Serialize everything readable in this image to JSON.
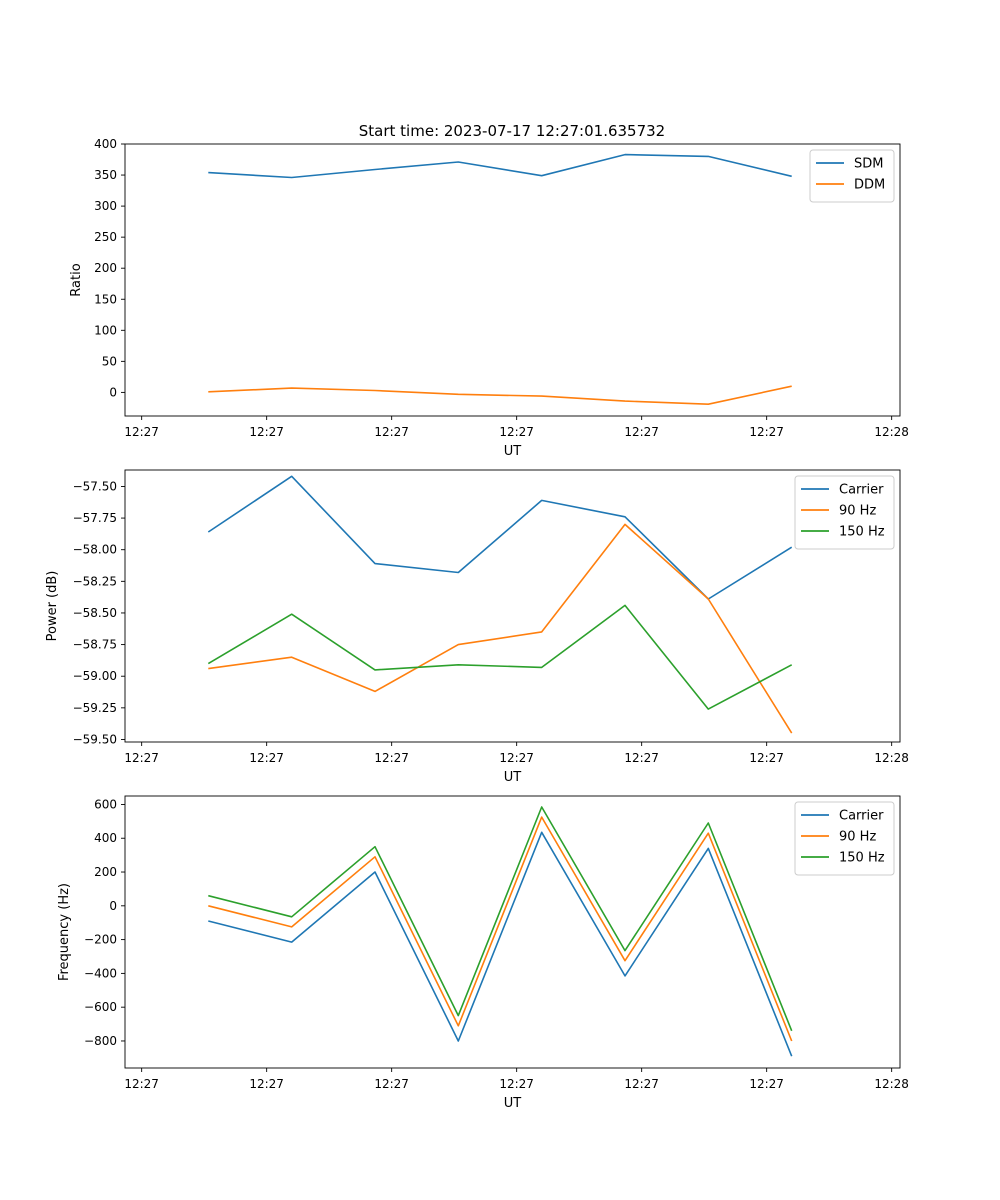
{
  "figure_title": "Start time: 2023-07-17 12:27:01.635732",
  "chart_data": [
    {
      "type": "line",
      "title": "Start time: 2023-07-17 12:27:01.635732",
      "xlabel": "UT",
      "ylabel": "Ratio",
      "x": [
        1,
        2,
        3,
        4,
        5,
        6,
        7,
        8
      ],
      "xlim": [
        0,
        9.3
      ],
      "x_ticks": [
        0.2,
        1.7,
        3.2,
        4.7,
        6.2,
        7.7,
        9.2
      ],
      "x_tick_labels": [
        "12:27",
        "12:27",
        "12:27",
        "12:27",
        "12:27",
        "12:27",
        "12:28"
      ],
      "ylim": [
        -38,
        400
      ],
      "y_ticks": [
        0,
        50,
        100,
        150,
        200,
        250,
        300,
        350,
        400
      ],
      "y_tick_labels": [
        "0",
        "50",
        "100",
        "150",
        "200",
        "250",
        "300",
        "350",
        "400"
      ],
      "legend_position": "top-right",
      "series": [
        {
          "name": "SDM",
          "color": "#1f77b4",
          "values": [
            354,
            346,
            359,
            371,
            349,
            383,
            380,
            348
          ]
        },
        {
          "name": "DDM",
          "color": "#ff7f0e",
          "values": [
            1,
            7,
            3,
            -3,
            -6,
            -14,
            -19,
            10
          ]
        }
      ]
    },
    {
      "type": "line",
      "title": "",
      "xlabel": "UT",
      "ylabel": "Power (dB)",
      "x": [
        1,
        2,
        3,
        4,
        5,
        6,
        7,
        8
      ],
      "xlim": [
        0,
        9.3
      ],
      "x_ticks": [
        0.2,
        1.7,
        3.2,
        4.7,
        6.2,
        7.7,
        9.2
      ],
      "x_tick_labels": [
        "12:27",
        "12:27",
        "12:27",
        "12:27",
        "12:27",
        "12:27",
        "12:28"
      ],
      "ylim": [
        -59.52,
        -57.37
      ],
      "y_ticks": [
        -57.5,
        -57.75,
        -58.0,
        -58.25,
        -58.5,
        -58.75,
        -59.0,
        -59.25,
        -59.5
      ],
      "y_tick_labels": [
        "−57.50",
        "−57.75",
        "−58.00",
        "−58.25",
        "−58.50",
        "−58.75",
        "−59.00",
        "−59.25",
        "−59.50"
      ],
      "legend_position": "top-right",
      "series": [
        {
          "name": "Carrier",
          "color": "#1f77b4",
          "values": [
            -57.86,
            -57.42,
            -58.11,
            -58.18,
            -57.61,
            -57.74,
            -58.39,
            -57.98
          ]
        },
        {
          "name": "90 Hz",
          "color": "#ff7f0e",
          "values": [
            -58.94,
            -58.85,
            -59.12,
            -58.75,
            -58.65,
            -57.8,
            -58.39,
            -59.45
          ]
        },
        {
          "name": "150 Hz",
          "color": "#2ca02c",
          "values": [
            -58.9,
            -58.51,
            -58.95,
            -58.91,
            -58.93,
            -58.44,
            -59.26,
            -58.91
          ]
        }
      ]
    },
    {
      "type": "line",
      "title": "",
      "xlabel": "UT",
      "ylabel": "Frequency (Hz)",
      "x": [
        1,
        2,
        3,
        4,
        5,
        6,
        7,
        8
      ],
      "xlim": [
        0,
        9.3
      ],
      "x_ticks": [
        0.2,
        1.7,
        3.2,
        4.7,
        6.2,
        7.7,
        9.2
      ],
      "x_tick_labels": [
        "12:27",
        "12:27",
        "12:27",
        "12:27",
        "12:27",
        "12:27",
        "12:28"
      ],
      "ylim": [
        -960,
        650
      ],
      "y_ticks": [
        600,
        400,
        200,
        0,
        -200,
        -400,
        -600,
        -800
      ],
      "y_tick_labels": [
        "600",
        "400",
        "200",
        "0",
        "−200",
        "−400",
        "−600",
        "−800"
      ],
      "legend_position": "top-right",
      "series": [
        {
          "name": "Carrier",
          "color": "#1f77b4",
          "values": [
            -90,
            -215,
            200,
            -800,
            435,
            -415,
            340,
            -890
          ]
        },
        {
          "name": "90 Hz",
          "color": "#ff7f0e",
          "values": [
            0,
            -125,
            290,
            -710,
            525,
            -325,
            430,
            -800
          ]
        },
        {
          "name": "150 Hz",
          "color": "#2ca02c",
          "values": [
            60,
            -65,
            350,
            -650,
            585,
            -265,
            490,
            -740
          ]
        }
      ]
    }
  ]
}
